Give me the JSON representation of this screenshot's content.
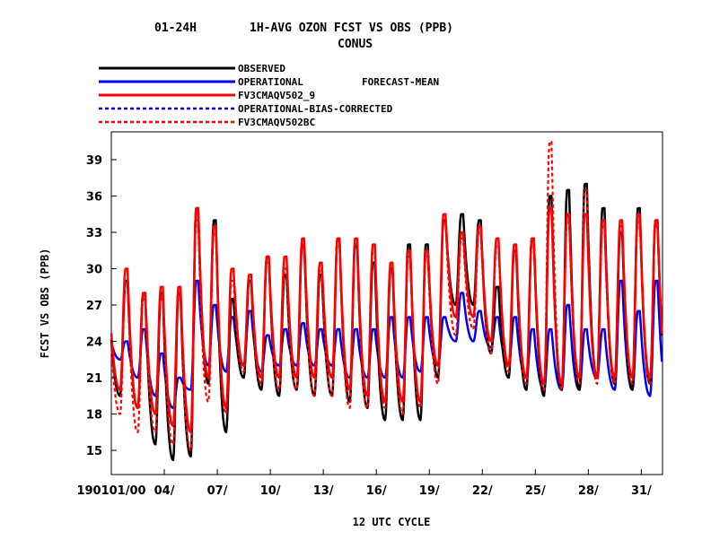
{
  "chart_data": {
    "type": "line",
    "title_left": "01-24H",
    "title_main": "1H-AVG OZON FCST VS OBS (PPB)",
    "subtitle": "CONUS",
    "legend_note": "FORECAST-MEAN",
    "xlabel": "12 UTC CYCLE",
    "ylabel": "FCST VS OBS (PPB)",
    "ylim": [
      13.0,
      41.3
    ],
    "yticks": [
      "15",
      "18",
      "21",
      "24",
      "27",
      "30",
      "33",
      "36",
      "39"
    ],
    "xlim": [
      1,
      32.2
    ],
    "xticks": [
      {
        "day": 1,
        "label": "190101/00"
      },
      {
        "day": 4,
        "label": "04/"
      },
      {
        "day": 7,
        "label": "07/"
      },
      {
        "day": 10,
        "label": "10/"
      },
      {
        "day": 13,
        "label": "13/"
      },
      {
        "day": 16,
        "label": "16/"
      },
      {
        "day": 19,
        "label": "19/"
      },
      {
        "day": 22,
        "label": "22/"
      },
      {
        "day": 25,
        "label": "25/"
      },
      {
        "day": 28,
        "label": "28/"
      },
      {
        "day": 31,
        "label": "31/"
      }
    ],
    "series": [
      {
        "name": "OBSERVED",
        "color": "#000000",
        "dash": "solid",
        "peak": [
          26,
          29,
          28,
          28,
          28,
          35,
          34,
          27.5,
          29,
          31,
          29.5,
          32,
          29.5,
          32.5,
          32,
          30.5,
          30,
          32,
          32,
          34,
          34.5,
          34,
          28.5,
          31.5,
          32.5,
          36,
          36.5,
          37,
          35,
          33,
          35,
          34
        ],
        "trough": [
          21,
          19.5,
          18.5,
          15.5,
          14.2,
          14.5,
          20.5,
          16.5,
          21,
          20,
          19.5,
          20,
          19.5,
          19.5,
          19,
          18.5,
          17.5,
          17.5,
          17.5,
          21,
          27,
          27,
          23,
          21,
          20,
          19.5,
          20,
          20,
          21,
          20.5,
          20,
          20.5
        ]
      },
      {
        "name": "OPERATIONAL",
        "color": "#0000ee",
        "dash": "solid",
        "peak": [
          24.5,
          24,
          25,
          23,
          21,
          29,
          27,
          26,
          26.5,
          24.5,
          25,
          25.5,
          25,
          25,
          25,
          25,
          26,
          26,
          26,
          26,
          28,
          26.5,
          26,
          26,
          25,
          25,
          27,
          25,
          25,
          29,
          26.5,
          29
        ],
        "trough": [
          23,
          22.5,
          21,
          19.5,
          18.5,
          20,
          22,
          21.5,
          22,
          21.5,
          22,
          22,
          22,
          22,
          21,
          21,
          21,
          21,
          21.5,
          22,
          24,
          24,
          23.5,
          22,
          21,
          20,
          20,
          20,
          21,
          20,
          20,
          19.5
        ]
      },
      {
        "name": "FV3CMAQV502_9",
        "color": "#ff0000",
        "dash": "solid",
        "peak": [
          26.5,
          30,
          28,
          28.5,
          28.5,
          35,
          33.5,
          30,
          29.5,
          31,
          31,
          32.5,
          30.5,
          32.5,
          32.5,
          32,
          30.5,
          31.5,
          31.5,
          34.5,
          33,
          33.5,
          32.5,
          32,
          32.5,
          35,
          34.5,
          34.5,
          34,
          34,
          34.5,
          34
        ],
        "trough": [
          21,
          20,
          18.5,
          18,
          17,
          16.5,
          21,
          18.5,
          22,
          21,
          21,
          21,
          21,
          21,
          20,
          19.5,
          19,
          19,
          19,
          22,
          26,
          26,
          24,
          22,
          21,
          20.5,
          20.5,
          21,
          21,
          21,
          21,
          21
        ]
      },
      {
        "name": "OPERATIONAL-BIAS-CORRECTED",
        "color": "#0000ee",
        "dash": "4,3",
        "peak": [],
        "trough": []
      },
      {
        "name": "FV3CMAQV502BC",
        "color": "#ff0000",
        "dash": "4,3",
        "peak": [
          26,
          29,
          27.5,
          27.5,
          28,
          34,
          33,
          29,
          29,
          30.5,
          30,
          32,
          30,
          32,
          32,
          31.5,
          30,
          31,
          31,
          34,
          32.5,
          33,
          32,
          31.5,
          32,
          40.5,
          34,
          36.5,
          33.5,
          33.5,
          34,
          33.5
        ],
        "trough": [
          20,
          18,
          16.5,
          16.5,
          15.5,
          15,
          19,
          18,
          21.5,
          20.5,
          20,
          20,
          19.5,
          19.5,
          18.5,
          18.5,
          18.5,
          18,
          18.5,
          20.5,
          24.5,
          25,
          23,
          21.5,
          20.5,
          20,
          20,
          20.5,
          20.5,
          20.5,
          20.5,
          20.5
        ]
      }
    ]
  }
}
